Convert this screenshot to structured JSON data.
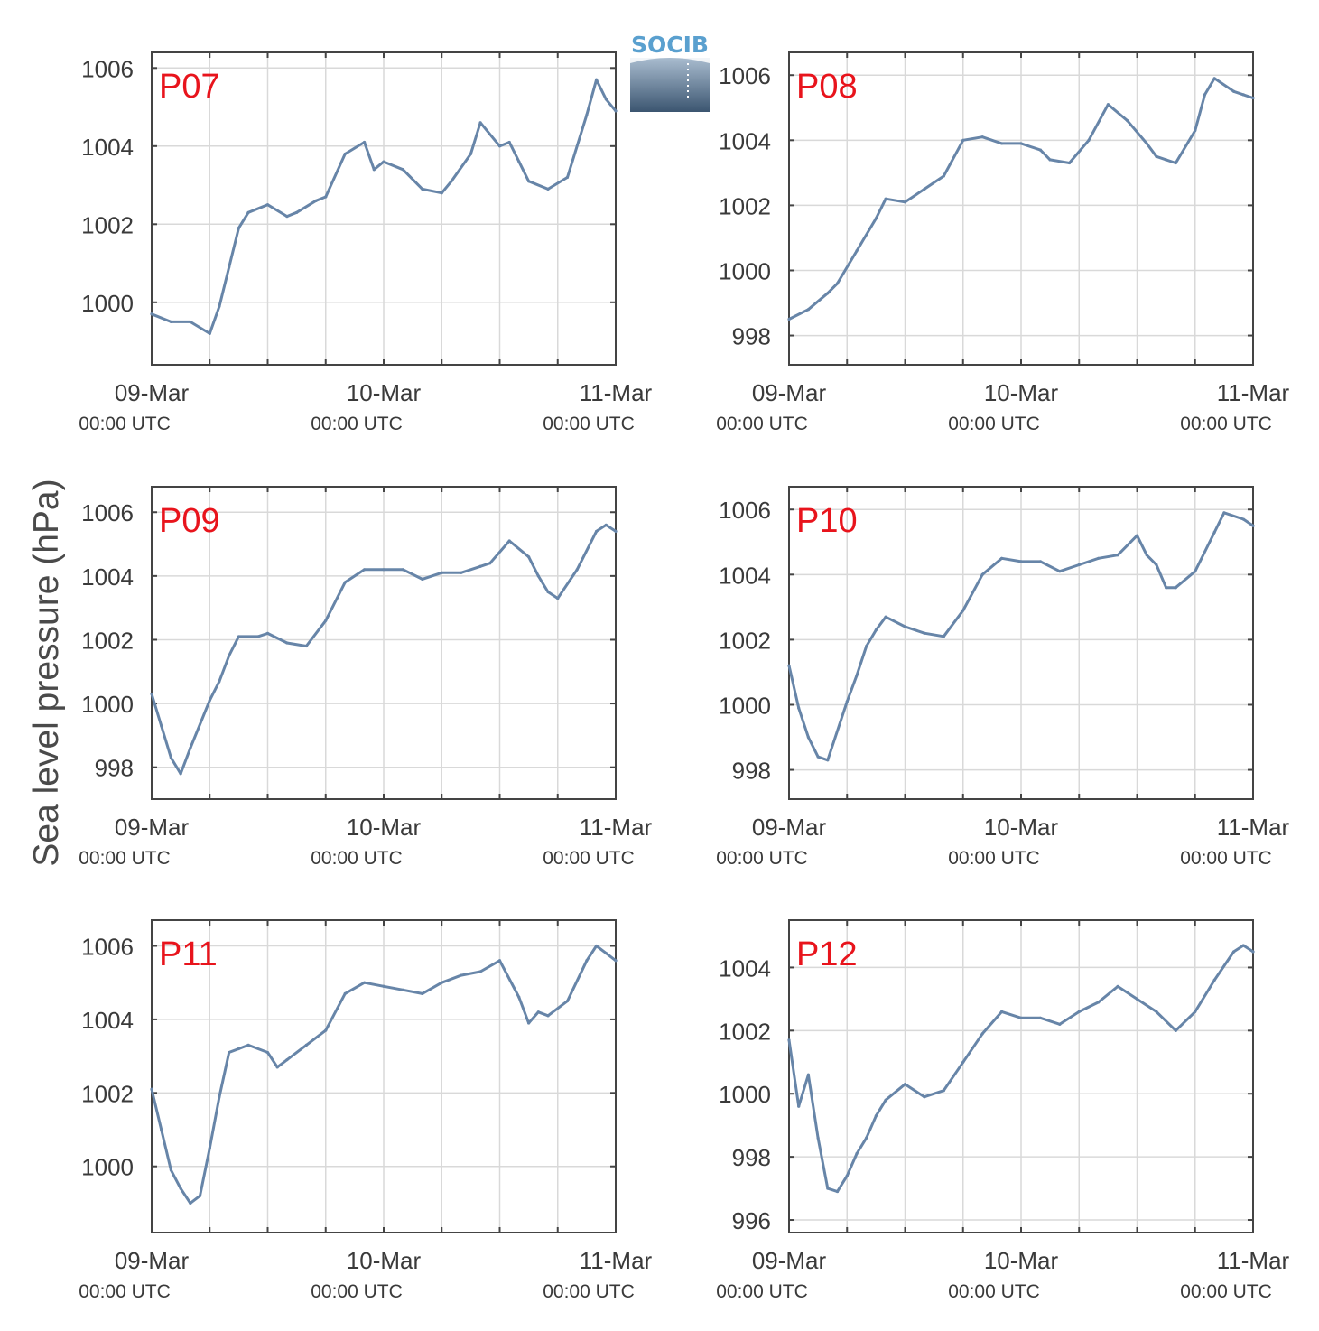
{
  "figure": {
    "ylabel": "Sea level pressure (hPa)",
    "logo_text": "SOCIB"
  },
  "colors": {
    "series": "#6785a8",
    "panel_label": "#e8141c",
    "grid": "#d9d9d9",
    "axes": "#444444"
  },
  "chart_data": [
    {
      "type": "line",
      "panel_label": "P07",
      "x": [
        "09-Mar 00:00",
        "09-Mar 02:00",
        "09-Mar 04:00",
        "09-Mar 06:00",
        "09-Mar 07:00",
        "09-Mar 08:00",
        "09-Mar 09:00",
        "09-Mar 10:00",
        "09-Mar 12:00",
        "09-Mar 14:00",
        "09-Mar 15:00",
        "09-Mar 17:00",
        "09-Mar 18:00",
        "09-Mar 20:00",
        "09-Mar 22:00",
        "09-Mar 23:00",
        "10-Mar 00:00",
        "10-Mar 02:00",
        "10-Mar 04:00",
        "10-Mar 06:00",
        "10-Mar 07:00",
        "10-Mar 09:00",
        "10-Mar 10:00",
        "10-Mar 12:00",
        "10-Mar 13:00",
        "10-Mar 14:00",
        "10-Mar 15:00",
        "10-Mar 17:00",
        "10-Mar 19:00",
        "10-Mar 21:00",
        "10-Mar 22:00",
        "10-Mar 23:00",
        "11-Mar 00:00"
      ],
      "values": [
        999.7,
        999.5,
        999.5,
        999.2,
        999.9,
        1000.9,
        1001.9,
        1002.3,
        1002.5,
        1002.2,
        1002.3,
        1002.6,
        1002.7,
        1003.8,
        1004.1,
        1003.4,
        1003.6,
        1003.4,
        1002.9,
        1002.8,
        1003.1,
        1003.8,
        1004.6,
        1004.0,
        1004.1,
        1003.6,
        1003.1,
        1002.9,
        1003.2,
        1004.8,
        1005.7,
        1005.2,
        1004.9
      ],
      "xticks": [
        [
          "09-Mar",
          "00:00 UTC"
        ],
        [
          "10-Mar",
          "00:00 UTC"
        ],
        [
          "11-Mar",
          "00:00 UTC"
        ]
      ],
      "yticks": [
        1000,
        1002,
        1004,
        1006
      ],
      "ylim": [
        998.4,
        1006.4
      ]
    },
    {
      "type": "line",
      "panel_label": "P08",
      "x": [
        "09-Mar 00:00",
        "09-Mar 02:00",
        "09-Mar 04:00",
        "09-Mar 05:00",
        "09-Mar 07:00",
        "09-Mar 09:00",
        "09-Mar 10:00",
        "09-Mar 12:00",
        "09-Mar 14:00",
        "09-Mar 16:00",
        "09-Mar 18:00",
        "09-Mar 20:00",
        "09-Mar 22:00",
        "10-Mar 00:00",
        "10-Mar 02:00",
        "10-Mar 03:00",
        "10-Mar 05:00",
        "10-Mar 07:00",
        "10-Mar 09:00",
        "10-Mar 11:00",
        "10-Mar 13:00",
        "10-Mar 14:00",
        "10-Mar 15:00",
        "10-Mar 16:00",
        "10-Mar 18:00",
        "10-Mar 19:00",
        "10-Mar 20:00",
        "10-Mar 22:00",
        "10-Mar 23:00",
        "11-Mar 00:00"
      ],
      "values": [
        998.5,
        998.8,
        999.3,
        999.6,
        1000.6,
        1001.6,
        1002.2,
        1002.1,
        1002.5,
        1002.9,
        1004.0,
        1004.1,
        1003.9,
        1003.9,
        1003.7,
        1003.4,
        1003.3,
        1004.0,
        1005.1,
        1004.6,
        1003.9,
        1003.5,
        1003.4,
        1003.3,
        1004.3,
        1005.4,
        1005.9,
        1005.5,
        1005.4,
        1005.3
      ],
      "xticks": [
        [
          "09-Mar",
          "00:00 UTC"
        ],
        [
          "10-Mar",
          "00:00 UTC"
        ],
        [
          "11-Mar",
          "00:00 UTC"
        ]
      ],
      "yticks": [
        998,
        1000,
        1002,
        1004,
        1006
      ],
      "ylim": [
        997.1,
        1006.7
      ]
    },
    {
      "type": "line",
      "panel_label": "P09",
      "x": [
        "09-Mar 00:00",
        "09-Mar 01:00",
        "09-Mar 02:00",
        "09-Mar 03:00",
        "09-Mar 04:00",
        "09-Mar 06:00",
        "09-Mar 07:00",
        "09-Mar 08:00",
        "09-Mar 09:00",
        "09-Mar 11:00",
        "09-Mar 12:00",
        "09-Mar 14:00",
        "09-Mar 16:00",
        "09-Mar 18:00",
        "09-Mar 20:00",
        "09-Mar 22:00",
        "10-Mar 00:00",
        "10-Mar 02:00",
        "10-Mar 04:00",
        "10-Mar 06:00",
        "10-Mar 08:00",
        "10-Mar 10:00",
        "10-Mar 11:00",
        "10-Mar 13:00",
        "10-Mar 15:00",
        "10-Mar 16:00",
        "10-Mar 17:00",
        "10-Mar 18:00",
        "10-Mar 20:00",
        "10-Mar 22:00",
        "10-Mar 23:00",
        "11-Mar 00:00"
      ],
      "values": [
        1000.3,
        999.3,
        998.3,
        997.8,
        998.6,
        1000.1,
        1000.7,
        1001.5,
        1002.1,
        1002.1,
        1002.2,
        1001.9,
        1001.8,
        1002.6,
        1003.8,
        1004.2,
        1004.2,
        1004.2,
        1003.9,
        1004.1,
        1004.1,
        1004.3,
        1004.4,
        1005.1,
        1004.6,
        1004.0,
        1003.5,
        1003.3,
        1004.2,
        1005.4,
        1005.6,
        1005.4
      ],
      "xticks": [
        [
          "09-Mar",
          "00:00 UTC"
        ],
        [
          "10-Mar",
          "00:00 UTC"
        ],
        [
          "11-Mar",
          "00:00 UTC"
        ]
      ],
      "yticks": [
        998,
        1000,
        1002,
        1004,
        1006
      ],
      "ylim": [
        997.0,
        1006.8
      ]
    },
    {
      "type": "line",
      "panel_label": "P10",
      "x": [
        "09-Mar 00:00",
        "09-Mar 01:00",
        "09-Mar 02:00",
        "09-Mar 03:00",
        "09-Mar 04:00",
        "09-Mar 06:00",
        "09-Mar 07:00",
        "09-Mar 08:00",
        "09-Mar 09:00",
        "09-Mar 10:00",
        "09-Mar 12:00",
        "09-Mar 14:00",
        "09-Mar 16:00",
        "09-Mar 18:00",
        "09-Mar 20:00",
        "09-Mar 22:00",
        "10-Mar 00:00",
        "10-Mar 02:00",
        "10-Mar 04:00",
        "10-Mar 06:00",
        "10-Mar 08:00",
        "10-Mar 10:00",
        "10-Mar 12:00",
        "10-Mar 13:00",
        "10-Mar 14:00",
        "10-Mar 15:00",
        "10-Mar 16:00",
        "10-Mar 18:00",
        "10-Mar 20:00",
        "10-Mar 21:00",
        "10-Mar 23:00",
        "11-Mar 00:00"
      ],
      "values": [
        1001.2,
        999.9,
        999.0,
        998.4,
        998.3,
        1000.1,
        1000.9,
        1001.8,
        1002.3,
        1002.7,
        1002.4,
        1002.2,
        1002.1,
        1002.9,
        1004.0,
        1004.5,
        1004.4,
        1004.4,
        1004.1,
        1004.3,
        1004.5,
        1004.6,
        1005.2,
        1004.6,
        1004.3,
        1003.6,
        1003.6,
        1004.1,
        1005.3,
        1005.9,
        1005.7,
        1005.5
      ],
      "xticks": [
        [
          "09-Mar",
          "00:00 UTC"
        ],
        [
          "10-Mar",
          "00:00 UTC"
        ],
        [
          "11-Mar",
          "00:00 UTC"
        ]
      ],
      "yticks": [
        998,
        1000,
        1002,
        1004,
        1006
      ],
      "ylim": [
        997.1,
        1006.7
      ]
    },
    {
      "type": "line",
      "panel_label": "P11",
      "x": [
        "09-Mar 00:00",
        "09-Mar 01:00",
        "09-Mar 02:00",
        "09-Mar 03:00",
        "09-Mar 04:00",
        "09-Mar 05:00",
        "09-Mar 06:00",
        "09-Mar 07:00",
        "09-Mar 08:00",
        "09-Mar 09:00",
        "09-Mar 10:00",
        "09-Mar 12:00",
        "09-Mar 13:00",
        "09-Mar 14:00",
        "09-Mar 16:00",
        "09-Mar 18:00",
        "09-Mar 20:00",
        "09-Mar 22:00",
        "10-Mar 00:00",
        "10-Mar 02:00",
        "10-Mar 04:00",
        "10-Mar 06:00",
        "10-Mar 08:00",
        "10-Mar 10:00",
        "10-Mar 12:00",
        "10-Mar 14:00",
        "10-Mar 15:00",
        "10-Mar 16:00",
        "10-Mar 17:00",
        "10-Mar 19:00",
        "10-Mar 21:00",
        "10-Mar 22:00",
        "10-Mar 23:00",
        "11-Mar 00:00"
      ],
      "values": [
        1002.1,
        1001.0,
        999.9,
        999.4,
        999.0,
        999.2,
        1000.5,
        1001.9,
        1003.1,
        1003.2,
        1003.3,
        1003.1,
        1002.7,
        1002.9,
        1003.3,
        1003.7,
        1004.7,
        1005.0,
        1004.9,
        1004.8,
        1004.7,
        1005.0,
        1005.2,
        1005.3,
        1005.6,
        1004.6,
        1003.9,
        1004.2,
        1004.1,
        1004.5,
        1005.6,
        1006.0,
        1005.8,
        1005.6
      ],
      "xticks": [
        [
          "09-Mar",
          "00:00 UTC"
        ],
        [
          "10-Mar",
          "00:00 UTC"
        ],
        [
          "11-Mar",
          "00:00 UTC"
        ]
      ],
      "yticks": [
        1000,
        1002,
        1004,
        1006
      ],
      "ylim": [
        998.2,
        1006.7
      ]
    },
    {
      "type": "line",
      "panel_label": "P12",
      "x": [
        "09-Mar 00:00",
        "09-Mar 01:00",
        "09-Mar 02:00",
        "09-Mar 03:00",
        "09-Mar 04:00",
        "09-Mar 05:00",
        "09-Mar 06:00",
        "09-Mar 07:00",
        "09-Mar 08:00",
        "09-Mar 09:00",
        "09-Mar 10:00",
        "09-Mar 12:00",
        "09-Mar 14:00",
        "09-Mar 16:00",
        "09-Mar 18:00",
        "09-Mar 20:00",
        "09-Mar 22:00",
        "10-Mar 00:00",
        "10-Mar 02:00",
        "10-Mar 04:00",
        "10-Mar 06:00",
        "10-Mar 08:00",
        "10-Mar 10:00",
        "10-Mar 12:00",
        "10-Mar 14:00",
        "10-Mar 16:00",
        "10-Mar 18:00",
        "10-Mar 20:00",
        "10-Mar 22:00",
        "10-Mar 23:00",
        "11-Mar 00:00"
      ],
      "values": [
        1001.7,
        999.6,
        1000.6,
        998.6,
        997.0,
        996.9,
        997.4,
        998.1,
        998.6,
        999.3,
        999.8,
        1000.3,
        999.9,
        1000.1,
        1001.0,
        1001.9,
        1002.6,
        1002.4,
        1002.4,
        1002.2,
        1002.6,
        1002.9,
        1003.4,
        1003.0,
        1002.6,
        1002.0,
        1002.6,
        1003.6,
        1004.5,
        1004.7,
        1004.5
      ],
      "xticks": [
        [
          "09-Mar",
          "00:00 UTC"
        ],
        [
          "10-Mar",
          "00:00 UTC"
        ],
        [
          "11-Mar",
          "00:00 UTC"
        ]
      ],
      "yticks": [
        996,
        998,
        1000,
        1002,
        1004
      ],
      "ylim": [
        995.6,
        1005.5
      ]
    }
  ]
}
